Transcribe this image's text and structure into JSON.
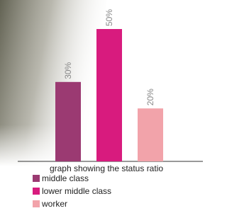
{
  "chart_data": {
    "type": "bar",
    "title": "graph showing the status ratio",
    "categories": [
      "middle class",
      "lower middle class",
      "worker"
    ],
    "values": [
      30,
      50,
      20
    ],
    "value_labels": [
      "30%",
      "50%",
      "20%"
    ],
    "colors": [
      "#9b3a72",
      "#d81b7e",
      "#f2a3aa"
    ]
  }
}
